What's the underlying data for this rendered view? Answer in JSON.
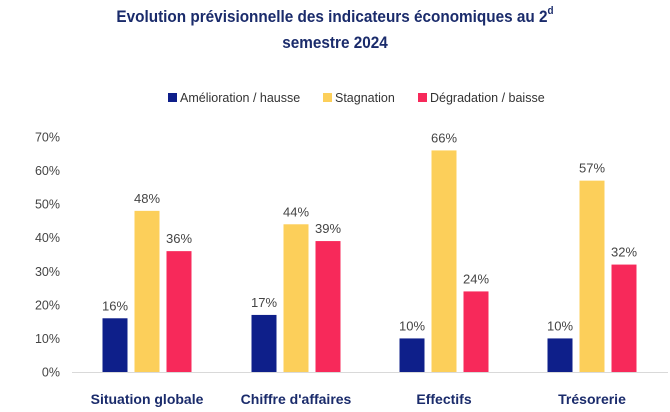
{
  "chart_data": {
    "type": "bar",
    "title_line1": "Evolution prévisionnelle des indicateurs économiques au 2",
    "title_sup": "d",
    "title_line2": "semestre 2024",
    "categories": [
      "Situation globale",
      "Chiffre d'affaires",
      "Effectifs",
      "Trésorerie"
    ],
    "series": [
      {
        "name": "Amélioration / hausse",
        "color": "#0e1f8a",
        "values": [
          16,
          17,
          10,
          10
        ],
        "labels": [
          "16%",
          "17%",
          "10%",
          "10%"
        ]
      },
      {
        "name": "Stagnation",
        "color": "#fccf5a",
        "values": [
          48,
          44,
          66,
          57
        ],
        "labels": [
          "48%",
          "44%",
          "66%",
          "57%"
        ]
      },
      {
        "name": "Dégradation / baisse",
        "color": "#f7295a",
        "values": [
          36,
          39,
          24,
          32
        ],
        "labels": [
          "36%",
          "39%",
          "24%",
          "32%"
        ]
      }
    ],
    "ylim": [
      0,
      70
    ],
    "yticks": [
      0,
      10,
      20,
      30,
      40,
      50,
      60,
      70
    ],
    "ytick_labels": [
      "0%",
      "10%",
      "20%",
      "30%",
      "40%",
      "50%",
      "60%",
      "70%"
    ],
    "legend_position": "top",
    "grid": false
  }
}
